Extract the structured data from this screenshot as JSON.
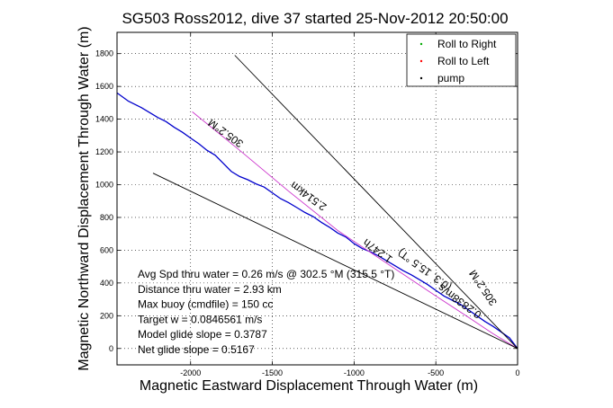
{
  "chart_data": {
    "type": "line",
    "title": "SG503 Ross2012, dive 37 started 25-Nov-2012 20:50:00",
    "xlabel": "Magnetic Eastward Displacement Through Water (m)",
    "ylabel": "Magnetic Northward Displacement Through Water (m)",
    "xlim": [
      -2450,
      0
    ],
    "ylim": [
      -100,
      1930
    ],
    "xticks": [
      -2000,
      -1500,
      -1000,
      -500,
      0
    ],
    "yticks": [
      0,
      200,
      400,
      600,
      800,
      1000,
      1200,
      1400,
      1600,
      1800
    ],
    "grid": true,
    "legend_position": "top-right",
    "legend": [
      {
        "label": "Roll to Right",
        "color": "#00aa00",
        "marker": "."
      },
      {
        "label": "Roll to Left",
        "color": "#ff0000",
        "marker": "."
      },
      {
        "label": "pump",
        "color": "#000000",
        "marker": "."
      }
    ],
    "series": [
      {
        "color": "#0000cc",
        "x": [
          -2450,
          -2380,
          -2300,
          -2250,
          -2200,
          -2150,
          -2100,
          -2050,
          -2000,
          -1950,
          -1900,
          -1850,
          -1800,
          -1750,
          -1700,
          -1650,
          -1600,
          -1550,
          -1500,
          -1450,
          -1400,
          -1350,
          -1300,
          -1250,
          -1200,
          -1150,
          -1100,
          -1050,
          -1000,
          -950,
          -900,
          -850,
          -800,
          -750,
          -700,
          -650,
          -600,
          -550,
          -500,
          -450,
          -400,
          -350,
          -300,
          -250,
          -200,
          -150,
          -100,
          -50,
          0
        ],
        "y": [
          1560,
          1510,
          1470,
          1440,
          1410,
          1385,
          1350,
          1320,
          1285,
          1250,
          1210,
          1180,
          1130,
          1080,
          1050,
          1030,
          1005,
          985,
          950,
          915,
          890,
          860,
          830,
          805,
          770,
          740,
          705,
          680,
          640,
          610,
          590,
          565,
          535,
          505,
          475,
          450,
          420,
          390,
          355,
          320,
          295,
          270,
          235,
          200,
          165,
          135,
          100,
          65,
          0
        ]
      },
      {
        "color": "#cc33cc",
        "x": [
          -1990,
          -1700,
          -1400,
          -1100,
          -800,
          -500,
          -300,
          -150,
          0
        ],
        "y": [
          1445,
          1210,
          960,
          720,
          520,
          320,
          190,
          90,
          0
        ]
      },
      {
        "color": "#000000",
        "x": [
          -1730,
          0
        ],
        "y": [
          1790,
          0
        ]
      },
      {
        "color": "#000000",
        "x": [
          -2230,
          0
        ],
        "y": [
          1070,
          0
        ]
      }
    ],
    "rotated_labels": [
      "305.2°M",
      "2.514km",
      "1.247h",
      "0.2838m/s",
      "305.2°M",
      "(0.3, 15.5 °T)"
    ],
    "annotations": [
      "Avg Spd thru water = 0.26 m/s @ 302.5 °M (315.5 °T)",
      "Distance thru water = 2.93 km",
      "Max buoy (cmdfile) = 150 cc",
      "Target w = 0.0846561 m/s",
      "Model glide slope = 0.3787",
      "Net glide slope = 0.5167"
    ]
  }
}
